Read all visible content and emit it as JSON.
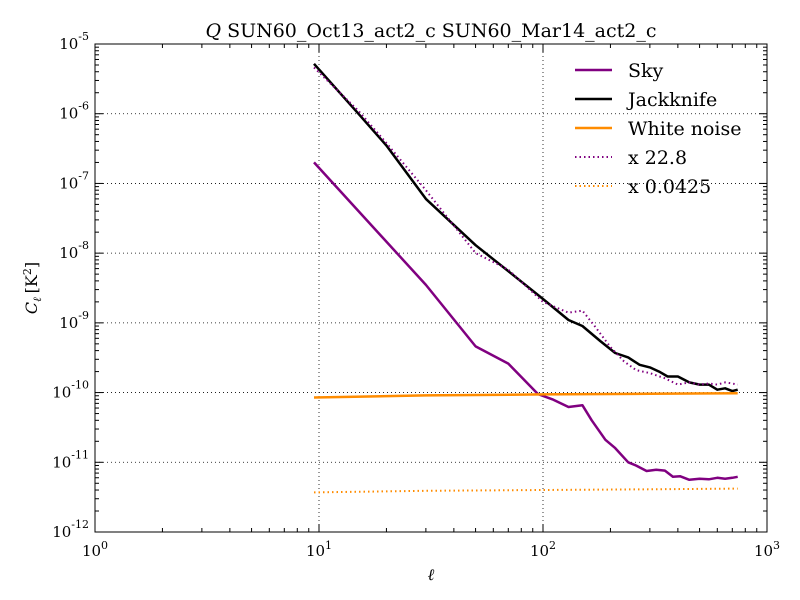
{
  "chart_data": {
    "type": "line",
    "title": "Q SUN60_Oct13_act2_c SUN60_Mar14_act2_c",
    "title_symbol": "Q",
    "title_rest": "SUN60_Oct13_act2_c SUN60_Mar14_act2_c",
    "xlabel": "ℓ",
    "ylabel": "C_ℓ [K²]",
    "ylabel_main": "C",
    "ylabel_sub": "ℓ",
    "ylabel_unit": "[K",
    "ylabel_exp": "2",
    "ylabel_close": "]",
    "xscale": "log",
    "yscale": "log",
    "xlim": [
      1,
      1000
    ],
    "ylim": [
      1e-12,
      1e-05
    ],
    "grid": true,
    "legend_position": "top-right",
    "x_ticks": [
      {
        "value": 1,
        "base": "10",
        "exp": "0"
      },
      {
        "value": 10,
        "base": "10",
        "exp": "1"
      },
      {
        "value": 100,
        "base": "10",
        "exp": "2"
      },
      {
        "value": 1000,
        "base": "10",
        "exp": "3"
      }
    ],
    "y_ticks": [
      {
        "value": 1e-12,
        "base": "10",
        "exp": "-12"
      },
      {
        "value": 1e-11,
        "base": "10",
        "exp": "-11"
      },
      {
        "value": 1e-10,
        "base": "10",
        "exp": "-10"
      },
      {
        "value": 1e-09,
        "base": "10",
        "exp": "-9"
      },
      {
        "value": 1e-08,
        "base": "10",
        "exp": "-8"
      },
      {
        "value": 1e-07,
        "base": "10",
        "exp": "-7"
      },
      {
        "value": 1e-06,
        "base": "10",
        "exp": "-6"
      },
      {
        "value": 1e-05,
        "base": "10",
        "exp": "-5"
      }
    ],
    "series": [
      {
        "name": "Sky",
        "color": "#800080",
        "style": "solid",
        "x": [
          9.5,
          30,
          50,
          70,
          95,
          110,
          130,
          150,
          165,
          190,
          210,
          240,
          260,
          290,
          320,
          350,
          380,
          410,
          450,
          500,
          550,
          600,
          650,
          700,
          740
        ],
        "y": [
          2e-07,
          3.5e-09,
          4.6e-10,
          2.6e-10,
          9.5e-11,
          8e-11,
          6.2e-11,
          6.6e-11,
          4e-11,
          2.1e-11,
          1.6e-11,
          1e-11,
          9e-12,
          7.5e-12,
          7.8e-12,
          7.6e-12,
          6.2e-12,
          6.3e-12,
          5.6e-12,
          5.8e-12,
          5.7e-12,
          6e-12,
          5.8e-12,
          6e-12,
          6.2e-12
        ]
      },
      {
        "name": "Jackknife",
        "color": "#000000",
        "style": "solid",
        "x": [
          9.5,
          15,
          20,
          30,
          50,
          70,
          100,
          130,
          150,
          180,
          210,
          240,
          270,
          300,
          330,
          360,
          400,
          450,
          500,
          550,
          600,
          650,
          700,
          740
        ],
        "y": [
          5.2e-06,
          1e-06,
          3.5e-07,
          6e-08,
          1.3e-08,
          5.5e-09,
          2.2e-09,
          1.1e-09,
          9e-10,
          5.5e-10,
          3.7e-10,
          3.2e-10,
          2.5e-10,
          2.3e-10,
          2e-10,
          1.7e-10,
          1.7e-10,
          1.4e-10,
          1.3e-10,
          1.3e-10,
          1.1e-10,
          1.15e-10,
          1.05e-10,
          1.1e-10
        ]
      },
      {
        "name": "White noise",
        "color": "#ff8c00",
        "style": "solid",
        "x": [
          9.5,
          30,
          100,
          300,
          740
        ],
        "y": [
          8.5e-11,
          9.1e-11,
          9.4e-11,
          9.6e-11,
          9.8e-11
        ]
      },
      {
        "name": "x 22.8",
        "color": "#800080",
        "style": "dotted",
        "x": [
          9.5,
          15,
          20,
          30,
          50,
          70,
          100,
          130,
          150,
          170,
          200,
          230,
          260,
          300,
          350,
          400,
          450,
          500,
          550,
          600,
          650,
          700,
          740
        ],
        "y": [
          4.6e-06,
          1.1e-06,
          3.8e-07,
          8e-08,
          1e-08,
          5.8e-09,
          2e-09,
          1.4e-09,
          1.5e-09,
          9e-10,
          4.5e-10,
          2.8e-10,
          2.1e-10,
          1.9e-10,
          1.6e-10,
          1.3e-10,
          1.4e-10,
          1.3e-10,
          1.35e-10,
          1.3e-10,
          1.4e-10,
          1.35e-10,
          1.3e-10
        ]
      },
      {
        "name": "x 0.0425",
        "color": "#ff8c00",
        "style": "dotted",
        "x": [
          9.5,
          30,
          100,
          300,
          740
        ],
        "y": [
          3.7e-12,
          3.9e-12,
          4e-12,
          4.1e-12,
          4.2e-12
        ]
      }
    ]
  }
}
